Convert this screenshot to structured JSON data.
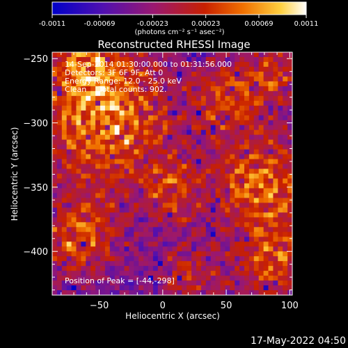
{
  "chart_data": {
    "type": "heatmap",
    "title": "Reconstructed RHESSI Image",
    "xlabel": "Heliocentric X (arcsec)",
    "ylabel": "Heliocentric Y (arcsec)",
    "xlim": [
      -87,
      102
    ],
    "ylim": [
      -434,
      -245
    ],
    "x_ticks": [
      -50,
      0,
      50,
      100
    ],
    "y_ticks": [
      -250,
      -300,
      -350,
      -400
    ],
    "colorbar": {
      "vmin": -0.0011,
      "vmax": 0.0011,
      "ticks": [
        "-0.0011",
        "-0.00069",
        "-0.00023",
        "0.00023",
        "0.00069",
        "0.0011"
      ],
      "unit": "(photons cm⁻² s⁻¹ asec⁻²)",
      "colormap": [
        "#0000c8",
        "#5010b0",
        "#9a1870",
        "#c82000",
        "#f07000",
        "#ffd040",
        "#ffffff"
      ]
    },
    "annotations": [
      "14-Sep-2014 01:30:00.000 to 01:31:56.000",
      "Detectors: 3F 6F 9F, Att 0",
      "Energy Range: 12.0 - 25.0 keV",
      "Clean     Total counts: 902."
    ],
    "peak_text": "Position of Peak = [-44,-298]",
    "peak": [
      -44,
      -298
    ],
    "grid_cells": [
      50,
      50
    ],
    "hot_regions": [
      {
        "x": -44,
        "y": -298,
        "radius_arcsec": 38,
        "amp": 1.0
      },
      {
        "x": 78,
        "y": -350,
        "radius_arcsec": 28,
        "amp": 0.9
      },
      {
        "x": 85,
        "y": -410,
        "radius_arcsec": 20,
        "amp": 0.75
      },
      {
        "x": 55,
        "y": -280,
        "radius_arcsec": 22,
        "amp": 0.7
      },
      {
        "x": -65,
        "y": -390,
        "radius_arcsec": 22,
        "amp": 0.8
      },
      {
        "x": 8,
        "y": -355,
        "radius_arcsec": 16,
        "amp": 0.6
      },
      {
        "x": -60,
        "y": -255,
        "radius_arcsec": 18,
        "amp": 0.7
      },
      {
        "x": 20,
        "y": -420,
        "radius_arcsec": 18,
        "amp": 0.55
      },
      {
        "x": 90,
        "y": -260,
        "radius_arcsec": 14,
        "amp": 0.6
      }
    ]
  },
  "footer": {
    "timestamp": "17-May-2022 04:50"
  }
}
